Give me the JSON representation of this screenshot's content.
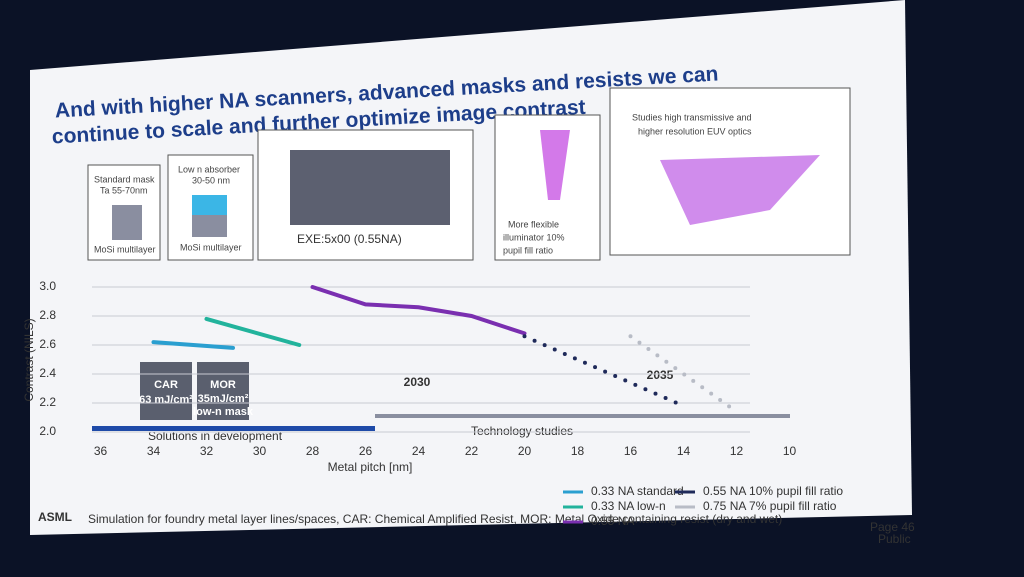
{
  "slide": {
    "title_lines": [
      "And with higher NA scanners, advanced masks and resists we can",
      "continue to scale and further optimize image contrast"
    ],
    "mask1": [
      "Standard mask",
      "Ta 55-70nm",
      "MoSi multilayer"
    ],
    "mask2": [
      "Low n absorber",
      "30-50 nm",
      "MoSi multilayer"
    ],
    "exe": "EXE:5x00 (0.55NA)",
    "illuminator": [
      "More flexible",
      "illuminator 10%",
      "pupil fill ratio"
    ],
    "optics": [
      "Studies high transmissive and",
      "higher resolution EUV optics"
    ],
    "car": [
      "CAR",
      "63 mJ/cm²"
    ],
    "mor": [
      "MOR",
      "35mJ/cm²",
      "low-n mask"
    ],
    "logo": "ASML",
    "footnote": "Simulation for foundry metal layer lines/spaces, CAR: Chemical Amplified Resist, MOR: Metal Oxide containing resist (dry and wet)",
    "page": "Page 46",
    "classification": "Public"
  },
  "chart_data": {
    "type": "line",
    "y_label": "Contrast (NILS)",
    "x_label": "Metal pitch [nm]",
    "annotations": [
      "2030",
      "2035",
      "Solutions in development",
      "Technology studies"
    ],
    "xlim": [
      37,
      9
    ],
    "xticks": [
      36,
      34,
      32,
      30,
      28,
      26,
      24,
      22,
      20,
      18,
      16,
      14,
      12,
      10
    ],
    "ylim": [
      2,
      3
    ],
    "yticks": [
      {
        "value": 2,
        "label": "2.0"
      },
      2.2,
      2.4,
      2.6,
      2.8,
      {
        "value": 3,
        "label": "3.0"
      }
    ],
    "grid": true,
    "series": [
      {
        "name": "0.33 NA standard",
        "color": "#2a9fd0",
        "style": "solid",
        "x": [
          34,
          31
        ],
        "values": [
          2.62,
          2.58
        ]
      },
      {
        "name": "0.33 NA low-n",
        "color": "#22b39c",
        "style": "solid",
        "x": [
          32,
          28.5
        ],
        "values": [
          2.78,
          2.6
        ]
      },
      {
        "name": "0.55 NA",
        "color": "#7a2fb0",
        "style": "solid",
        "x": [
          28,
          26,
          24,
          22,
          20
        ],
        "values": [
          3.0,
          2.88,
          2.86,
          2.8,
          2.68
        ]
      },
      {
        "name": "0.55 NA 10% pupil fill ratio",
        "color": "#1f2a5a",
        "style": "dotted",
        "x": [
          20,
          18,
          16,
          14
        ],
        "values": [
          2.66,
          2.5,
          2.34,
          2.18
        ]
      },
      {
        "name": "0.75 NA 7% pupil fill ratio",
        "color": "#b8bcc6",
        "style": "dotted",
        "x": [
          16,
          14,
          12
        ],
        "values": [
          2.66,
          2.4,
          2.14
        ]
      }
    ]
  }
}
